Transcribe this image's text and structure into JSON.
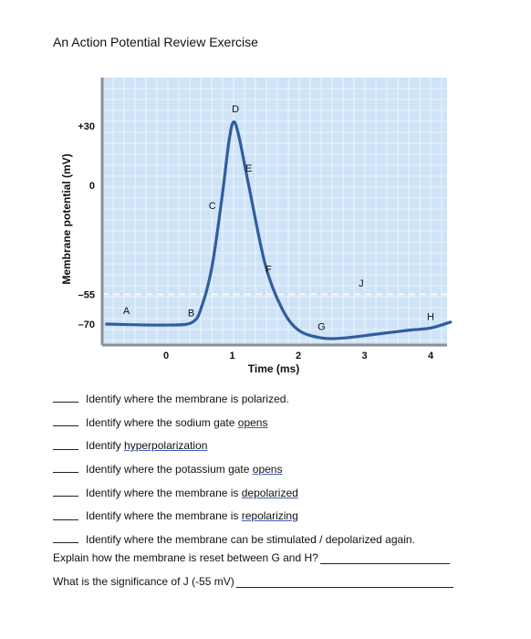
{
  "title": "An Action Potential Review Exercise",
  "chart_data": {
    "type": "line",
    "ylabel": "Membrane potential (mV)",
    "xlabel": "Time (ms)",
    "y_ticks": [
      "+30",
      "0",
      "–55",
      "–70"
    ],
    "y_tick_values": [
      30,
      0,
      -55,
      -70
    ],
    "x_ticks": [
      "0",
      "1",
      "2",
      "3",
      "4"
    ],
    "x_tick_values": [
      0,
      1,
      2,
      3,
      4
    ],
    "threshold_line_mv": -55,
    "grid": true,
    "background_color": "#cfe3f7",
    "line_color": "#2f5e9e",
    "series": [
      {
        "values_ms_mv": [
          [
            -0.9,
            -70
          ],
          [
            0,
            -70.5
          ],
          [
            0.4,
            -69
          ],
          [
            0.55,
            -60
          ],
          [
            0.7,
            -40
          ],
          [
            0.85,
            -5
          ],
          [
            0.95,
            22
          ],
          [
            1.02,
            32
          ],
          [
            1.1,
            25
          ],
          [
            1.25,
            0
          ],
          [
            1.5,
            -40
          ],
          [
            1.75,
            -62
          ],
          [
            2.0,
            -73
          ],
          [
            2.35,
            -77
          ],
          [
            2.7,
            -77
          ],
          [
            3.2,
            -75
          ],
          [
            3.7,
            -73
          ],
          [
            4.0,
            -72
          ],
          [
            4.3,
            -69
          ]
        ]
      }
    ],
    "point_labels": [
      {
        "label": "A",
        "x_ms": -0.6,
        "y_mv": -65
      },
      {
        "label": "B",
        "x_ms": 0.38,
        "y_mv": -66
      },
      {
        "label": "C",
        "x_ms": 0.7,
        "y_mv": -12
      },
      {
        "label": "D",
        "x_ms": 1.05,
        "y_mv": 37
      },
      {
        "label": "E",
        "x_ms": 1.25,
        "y_mv": 7
      },
      {
        "label": "F",
        "x_ms": 1.55,
        "y_mv": -44
      },
      {
        "label": "G",
        "x_ms": 2.35,
        "y_mv": -73
      },
      {
        "label": "J",
        "x_ms": 2.95,
        "y_mv": -51
      },
      {
        "label": "H",
        "x_ms": 4.0,
        "y_mv": -68
      }
    ]
  },
  "questions": [
    {
      "pre": "Identify where the membrane is polarized.",
      "u": "",
      "post": ""
    },
    {
      "pre": "Identify where the sodium gate ",
      "u": "opens",
      "post": ""
    },
    {
      "pre": "Identify ",
      "u": "hyperpolarization",
      "post": ""
    },
    {
      "pre": "Identify where the potassium gate ",
      "u": "opens",
      "post": ""
    },
    {
      "pre": "Identify where the membrane is ",
      "u": "depolarized",
      "post": ""
    },
    {
      "pre": "Identify where the membrane is ",
      "u": "repolarizing",
      "post": ""
    },
    {
      "pre": "Identify where the membrane can be stimulated / depolarized again.",
      "u": "",
      "post": ""
    }
  ],
  "prompts": [
    {
      "text": "Explain how the membrane is reset between G and H?"
    },
    {
      "text": "What is the significance of J (-55 mV)"
    }
  ]
}
